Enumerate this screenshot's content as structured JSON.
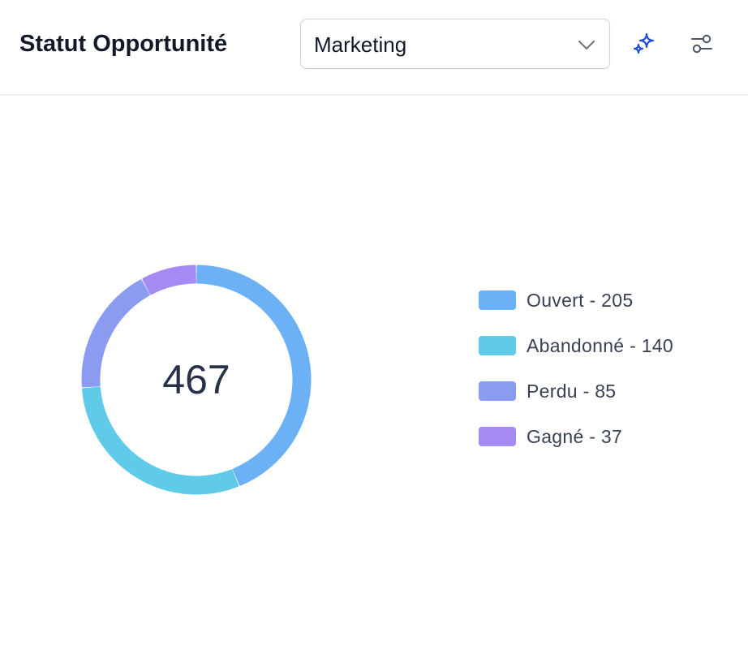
{
  "header": {
    "title": "Statut Opportunité",
    "filter": {
      "selected": "Marketing"
    },
    "icons": {
      "ai": "sparkle-icon",
      "settings": "sliders-icon",
      "dropdown": "chevron-down-icon"
    }
  },
  "chart_data": {
    "type": "donut",
    "title": "",
    "total_label": "467",
    "categories": [
      "Ouvert",
      "Abandonné",
      "Perdu",
      "Gagné"
    ],
    "values": [
      205,
      140,
      85,
      37
    ],
    "colors": [
      "#6cb0f6",
      "#5fcbe8",
      "#8b9bf0",
      "#a58af3"
    ],
    "legend_labels": [
      "Ouvert - 205",
      "Abandonné - 140",
      "Perdu - 85",
      "Gagné - 37"
    ],
    "legend_position": "right"
  }
}
